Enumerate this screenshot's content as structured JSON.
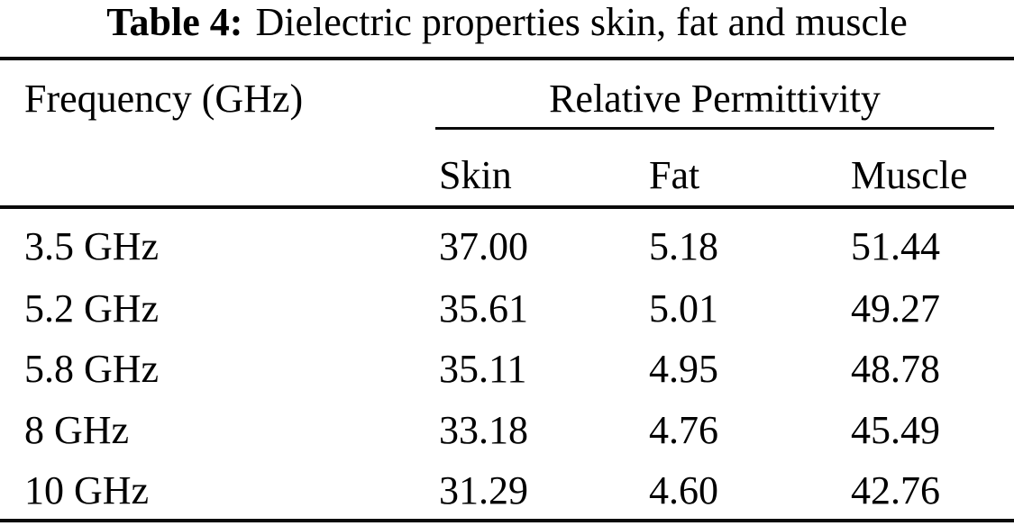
{
  "page": {
    "background": "#ffffff",
    "text_color": "#000000"
  },
  "table": {
    "caption": {
      "label": "Table 4:",
      "text": "Dielectric properties skin, fat and muscle"
    },
    "headers": {
      "frequency": "Frequency (GHz)",
      "group": "Relative Permittivity",
      "columns": [
        "Skin",
        "Fat",
        "Muscle"
      ]
    },
    "rows": [
      {
        "frequency": "3.5 GHz",
        "skin": "37.00",
        "fat": "5.18",
        "muscle": "51.44"
      },
      {
        "frequency": "5.2 GHz",
        "skin": "35.61",
        "fat": "5.01",
        "muscle": "49.27"
      },
      {
        "frequency": "5.8 GHz",
        "skin": "35.11",
        "fat": "4.95",
        "muscle": "48.78"
      },
      {
        "frequency": "8 GHz",
        "skin": "33.18",
        "fat": "4.76",
        "muscle": "45.49"
      },
      {
        "frequency": "10 GHz",
        "skin": "31.29",
        "fat": "4.60",
        "muscle": "42.76"
      }
    ]
  },
  "chart_data": {
    "type": "table",
    "title": "Table 4: Dielectric properties skin, fat and muscle",
    "columns": [
      "Frequency (GHz)",
      "Skin",
      "Fat",
      "Muscle"
    ],
    "group_header": "Relative Permittivity",
    "frequencies_ghz": [
      3.5,
      5.2,
      5.8,
      8,
      10
    ],
    "series": [
      {
        "name": "Skin",
        "values": [
          37.0,
          35.61,
          35.11,
          33.18,
          31.29
        ]
      },
      {
        "name": "Fat",
        "values": [
          5.18,
          5.01,
          4.95,
          4.76,
          4.6
        ]
      },
      {
        "name": "Muscle",
        "values": [
          51.44,
          49.27,
          48.78,
          45.49,
          42.76
        ]
      }
    ]
  }
}
